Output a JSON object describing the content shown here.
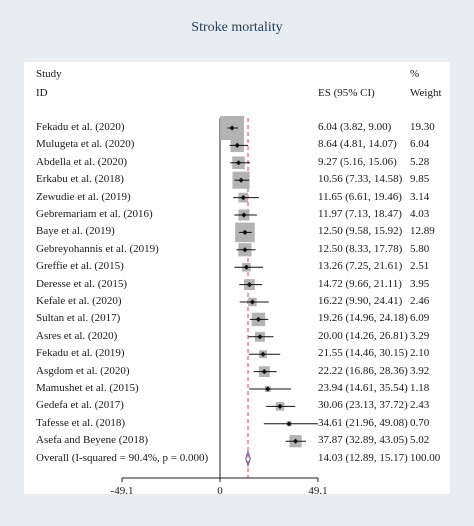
{
  "title": "Stroke mortality",
  "headers": {
    "study_line1": "Study",
    "study_line2": "ID",
    "es": "ES (95% CI)",
    "weight_line1": "%",
    "weight_line2": "Weight"
  },
  "chart_data": {
    "type": "forest",
    "title": "Stroke mortality",
    "xlabel": "",
    "xticks": [
      "-49.1",
      "0",
      "49.1"
    ],
    "xlim": [
      -49.1,
      49.1
    ],
    "null_line": 0,
    "studies": [
      {
        "id": "Fekadu et al. (2020)",
        "es": 6.04,
        "lo": 3.82,
        "hi": 9.0,
        "es_text": "6.04 (3.82, 9.00)",
        "weight": 19.3,
        "weight_text": "19.30"
      },
      {
        "id": "Mulugeta et al. (2020)",
        "es": 8.64,
        "lo": 4.81,
        "hi": 14.07,
        "es_text": "8.64 (4.81, 14.07)",
        "weight": 6.04,
        "weight_text": "6.04"
      },
      {
        "id": "Abdella et al. (2020)",
        "es": 9.27,
        "lo": 5.16,
        "hi": 15.06,
        "es_text": "9.27 (5.16, 15.06)",
        "weight": 5.28,
        "weight_text": "5.28"
      },
      {
        "id": "Erkabu et al. (2018)",
        "es": 10.56,
        "lo": 7.33,
        "hi": 14.58,
        "es_text": "10.56 (7.33, 14.58)",
        "weight": 9.85,
        "weight_text": "9.85"
      },
      {
        "id": "Zewudie et al. (2019)",
        "es": 11.65,
        "lo": 6.61,
        "hi": 19.46,
        "es_text": "11.65 (6.61, 19.46)",
        "weight": 3.14,
        "weight_text": "3.14"
      },
      {
        "id": "Gebremariam et al. (2016)",
        "es": 11.97,
        "lo": 7.13,
        "hi": 18.47,
        "es_text": "11.97 (7.13, 18.47)",
        "weight": 4.03,
        "weight_text": "4.03"
      },
      {
        "id": "Baye et al. (2019)",
        "es": 12.5,
        "lo": 9.58,
        "hi": 15.92,
        "es_text": "12.50 (9.58, 15.92)",
        "weight": 12.89,
        "weight_text": "12.89"
      },
      {
        "id": "Gebreyohannis et al. (2019)",
        "es": 12.5,
        "lo": 8.33,
        "hi": 17.78,
        "es_text": "12.50 (8.33, 17.78)",
        "weight": 5.8,
        "weight_text": "5.80"
      },
      {
        "id": "Greffie et al. (2015)",
        "es": 13.26,
        "lo": 7.25,
        "hi": 21.61,
        "es_text": "13.26 (7.25, 21.61)",
        "weight": 2.51,
        "weight_text": "2.51"
      },
      {
        "id": "Deresse et al. (2015)",
        "es": 14.72,
        "lo": 9.66,
        "hi": 21.11,
        "es_text": "14.72 (9.66, 21.11)",
        "weight": 3.95,
        "weight_text": "3.95"
      },
      {
        "id": "Kefale et al. (2020)",
        "es": 16.22,
        "lo": 9.9,
        "hi": 24.41,
        "es_text": "16.22 (9.90, 24.41)",
        "weight": 2.46,
        "weight_text": "2.46"
      },
      {
        "id": "Sultan et al. (2017)",
        "es": 19.26,
        "lo": 14.96,
        "hi": 24.18,
        "es_text": "19.26 (14.96, 24.18)",
        "weight": 6.09,
        "weight_text": "6.09"
      },
      {
        "id": "Asres et al. (2020)",
        "es": 20.0,
        "lo": 14.26,
        "hi": 26.81,
        "es_text": "20.00 (14.26, 26.81)",
        "weight": 3.29,
        "weight_text": "3.29"
      },
      {
        "id": "Fekadu et al. (2019)",
        "es": 21.55,
        "lo": 14.46,
        "hi": 30.15,
        "es_text": "21.55 (14.46, 30.15)",
        "weight": 2.1,
        "weight_text": "2.10"
      },
      {
        "id": "Asgdom et al. (2020)",
        "es": 22.22,
        "lo": 16.86,
        "hi": 28.36,
        "es_text": "22.22 (16.86, 28.36)",
        "weight": 3.92,
        "weight_text": "3.92"
      },
      {
        "id": "Mamushet et al. (2015)",
        "es": 23.94,
        "lo": 14.61,
        "hi": 35.54,
        "es_text": "23.94 (14.61, 35.54)",
        "weight": 1.18,
        "weight_text": "1.18"
      },
      {
        "id": "Gedefa et al. (2017)",
        "es": 30.06,
        "lo": 23.13,
        "hi": 37.72,
        "es_text": "30.06 (23.13, 37.72)",
        "weight": 2.43,
        "weight_text": "2.43"
      },
      {
        "id": "Tafesse et al. (2018)",
        "es": 34.61,
        "lo": 21.96,
        "hi": 49.08,
        "es_text": "34.61 (21.96, 49.08)",
        "weight": 0.7,
        "weight_text": "0.70"
      },
      {
        "id": "Asefa and Beyene (2018)",
        "es": 37.87,
        "lo": 32.89,
        "hi": 43.05,
        "es_text": "37.87 (32.89, 43.05)",
        "weight": 5.02,
        "weight_text": "5.02"
      }
    ],
    "overall": {
      "id": "Overall (I-squared = 90.4%, p = 0.000)",
      "es": 14.03,
      "lo": 12.89,
      "hi": 15.17,
      "es_text": "14.03 (12.89, 15.17)",
      "weight_text": "100.00"
    },
    "colors": {
      "box": "#b3b3b3",
      "point": "#111111",
      "diamond": "#7b6fb0",
      "dashed_line": "#c0504d"
    }
  }
}
